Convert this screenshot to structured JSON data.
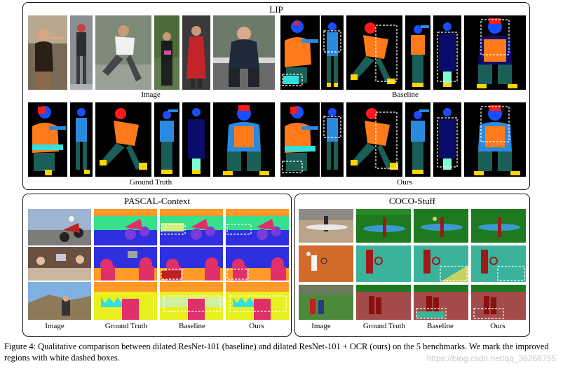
{
  "lip": {
    "title": "LIP",
    "label_image": "Image",
    "label_baseline": "Baseline",
    "label_gt": "Ground Truth",
    "label_ours": "Ours"
  },
  "pascal": {
    "title": "PASCAL-Context",
    "label_image": "Image",
    "label_gt": "Ground Truth",
    "label_baseline": "Baseline",
    "label_ours": "Ours"
  },
  "coco": {
    "title": "COCO-Stuff",
    "label_image": "Image",
    "label_gt": "Ground Truth",
    "label_baseline": "Baseline",
    "label_ours": "Ours"
  },
  "caption": {
    "text": "Figure 4: Qualitative comparison between dilated ResNet-101 (baseline) and dilated ResNet-101 + OCR (ours) on the 5 benchmarks. We mark the improved regions with white dashed boxes."
  },
  "watermark": "https://blog.csdn.net/qq_36268755",
  "colors": {
    "parse_face": "#1a4dff",
    "parse_hair": "#ff1a1a",
    "parse_upper": "#ff7a1a",
    "parse_arm": "#2a8ae0",
    "parse_leg": "#1b5e57",
    "parse_shoe": "#ffd400",
    "parse_glove": "#33e0e0",
    "coco_grass": "#1e7a1e",
    "coco_sand": "#3bb39a",
    "coco_ground": "#a34a4a"
  }
}
